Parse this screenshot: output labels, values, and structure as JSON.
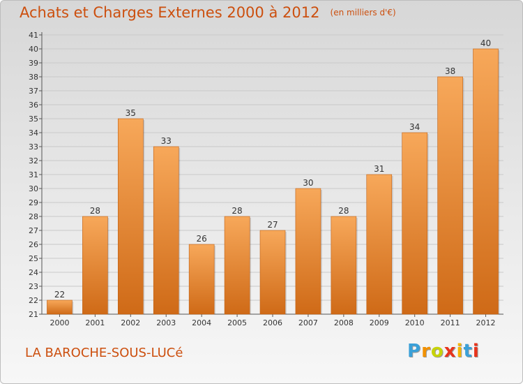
{
  "header": {
    "title": "Achats et Charges Externes 2000 à 2012",
    "unit": "(en milliers d'€)"
  },
  "footer": {
    "commune": "LA BAROCHE-SOUS-LUCé",
    "logo_letters": [
      "P",
      "r",
      "o",
      "x",
      "i",
      "t",
      "i"
    ],
    "logo_colors": [
      "#3aa0d8",
      "#f29100",
      "#c7d30a",
      "#e8341c",
      "#f6b500",
      "#3aa0d8",
      "#e8341c"
    ]
  },
  "colors": {
    "bar_light": "#f7a85a",
    "bar_dark": "#cf6a17",
    "grid": "#c9c9c9",
    "title": "#cc4f0e"
  },
  "chart_data": {
    "type": "bar",
    "categories": [
      "2000",
      "2001",
      "2002",
      "2003",
      "2004",
      "2005",
      "2006",
      "2007",
      "2008",
      "2009",
      "2010",
      "2011",
      "2012"
    ],
    "values": [
      22,
      28,
      35,
      33,
      26,
      28,
      27,
      30,
      28,
      31,
      34,
      38,
      40
    ],
    "ylim": [
      21,
      41
    ],
    "yticks": [
      21,
      22,
      23,
      24,
      25,
      26,
      27,
      28,
      29,
      30,
      31,
      32,
      33,
      34,
      35,
      36,
      37,
      38,
      39,
      40,
      41
    ],
    "grid": true,
    "legend": "none"
  }
}
